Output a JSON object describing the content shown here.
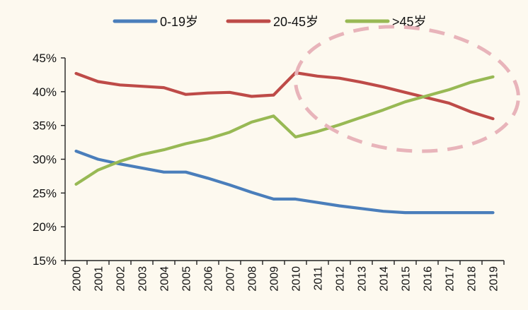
{
  "chart_data": {
    "type": "line",
    "categories": [
      "2000",
      "2001",
      "2002",
      "2003",
      "2004",
      "2005",
      "2006",
      "2007",
      "2008",
      "2009",
      "2010",
      "2011",
      "2012",
      "2013",
      "2014",
      "2015",
      "2016",
      "2017",
      "2018",
      "2019"
    ],
    "ylim": [
      15,
      45
    ],
    "yticks": [
      "15%",
      "20%",
      "25%",
      "30%",
      "35%",
      "40%",
      "45%"
    ],
    "legend_position": "top",
    "series": [
      {
        "name": "0-19岁",
        "color": "#4a7ebb",
        "values": [
          31.2,
          30.0,
          29.3,
          28.7,
          28.1,
          28.1,
          27.2,
          26.2,
          25.1,
          24.1,
          24.1,
          23.6,
          23.1,
          22.7,
          22.3,
          22.1,
          22.1,
          22.1,
          22.1,
          22.1
        ]
      },
      {
        "name": "20-45岁",
        "color": "#be4b48",
        "values": [
          42.7,
          41.5,
          41.0,
          40.8,
          40.6,
          39.6,
          39.8,
          39.9,
          39.3,
          39.5,
          42.8,
          42.3,
          42.0,
          41.4,
          40.7,
          39.9,
          39.1,
          38.3,
          37.0,
          36.0
        ]
      },
      {
        "name": ">45岁",
        "color": "#98b954",
        "values": [
          26.3,
          28.4,
          29.7,
          30.7,
          31.4,
          32.3,
          33.0,
          34.0,
          35.5,
          36.4,
          33.3,
          34.1,
          35.1,
          36.2,
          37.3,
          38.5,
          39.4,
          40.3,
          41.4,
          42.2
        ]
      }
    ]
  }
}
